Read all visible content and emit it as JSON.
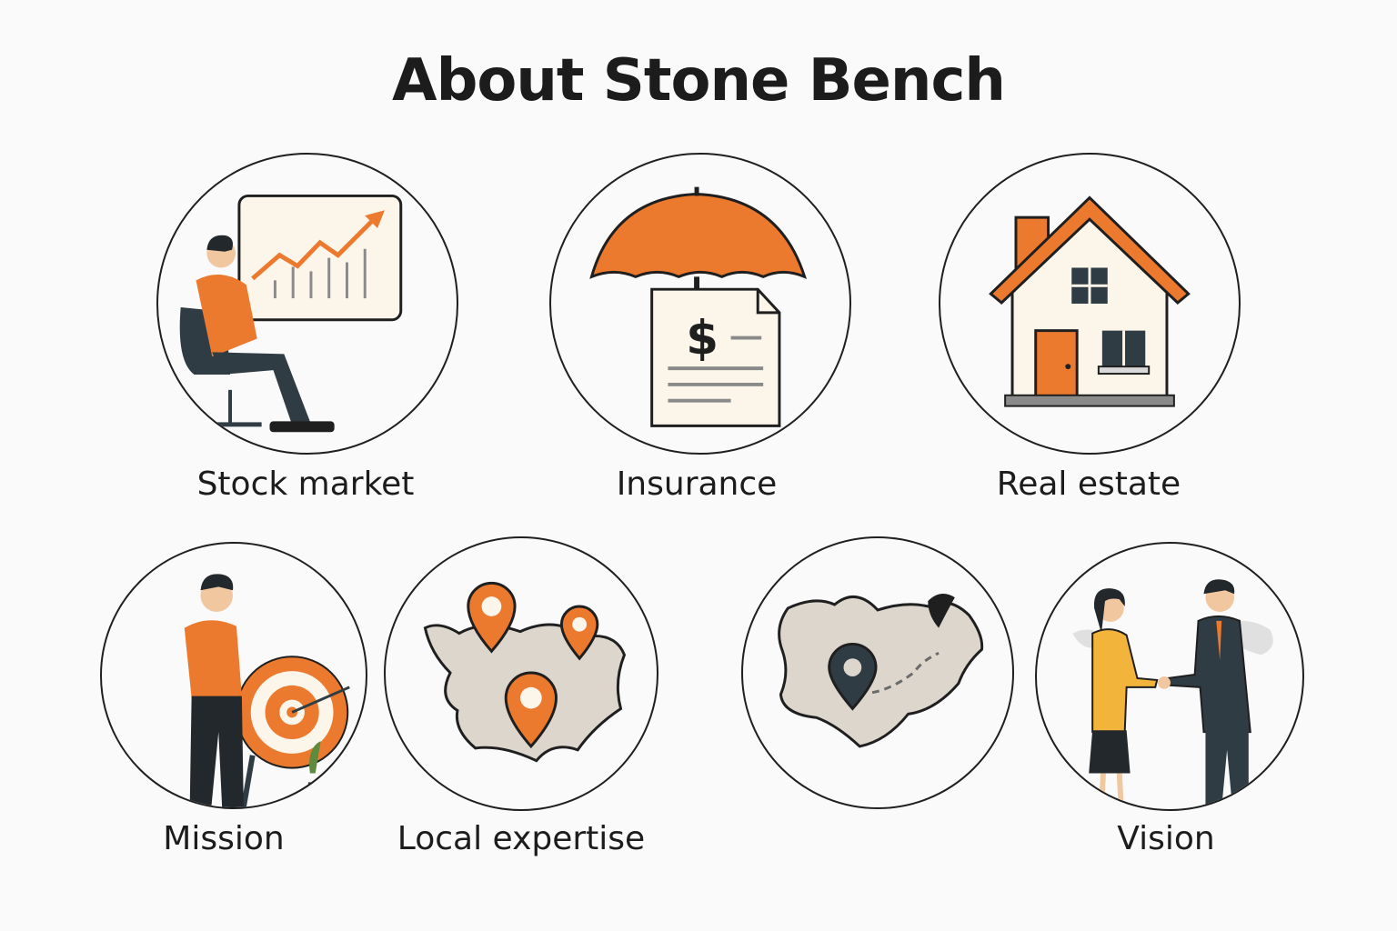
{
  "page": {
    "title": "About Stone Bench"
  },
  "items": [
    {
      "label": "Stock market",
      "icon": "stock-chart-icon"
    },
    {
      "label": "Insurance",
      "icon": "umbrella-document-icon"
    },
    {
      "label": "Real estate",
      "icon": "house-icon"
    },
    {
      "label": "Mission",
      "icon": "target-person-icon"
    },
    {
      "label": "Local expertise",
      "icon": "map-pins-icon"
    },
    {
      "label": "",
      "icon": "map-route-icon"
    },
    {
      "label": "Vision",
      "icon": "handshake-icon"
    }
  ],
  "colors": {
    "accent": "#ec7a2e",
    "dark": "#2f3c44",
    "land": "#dcd6cc",
    "paper": "#fbf5ea"
  }
}
